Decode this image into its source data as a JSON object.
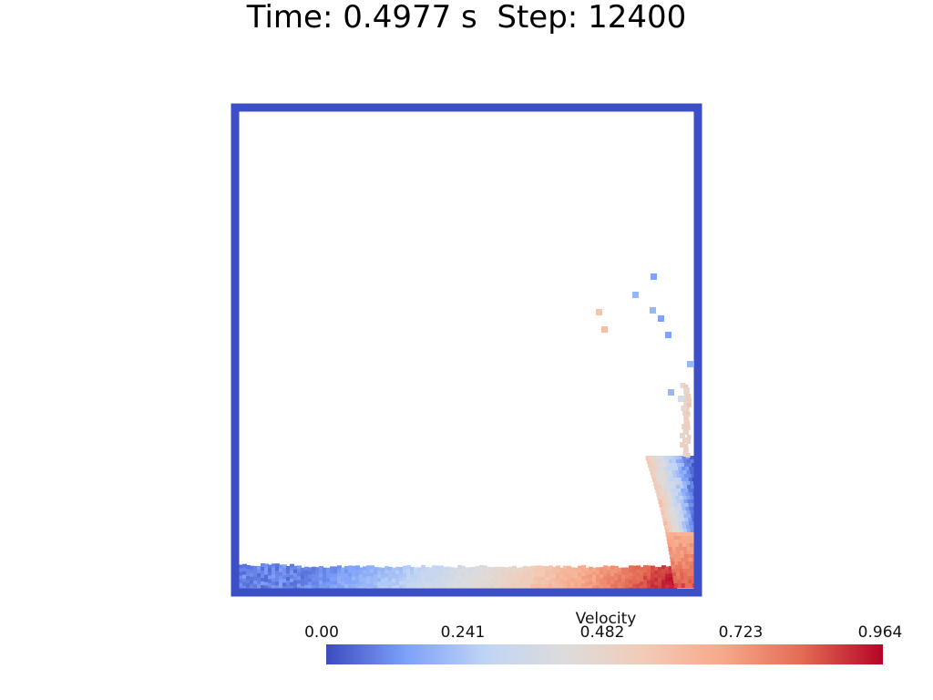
{
  "header": {
    "time_label": "Time:",
    "time_value": "0.4977",
    "time_unit": "s",
    "step_label": "Step:",
    "step_value": "12400"
  },
  "colorbar": {
    "title": "Velocity",
    "ticks": [
      "0.00",
      "0.241",
      "0.482",
      "0.723",
      "0.964"
    ],
    "min": 0.0,
    "max": 0.964,
    "colormap": [
      "#3b4cc0",
      "#7da0f9",
      "#c0d4f5",
      "#dddcdc",
      "#f2cbb7",
      "#f7a889",
      "#e36a53",
      "#b40426"
    ]
  },
  "domain_box": {
    "color": "#3d4fc6"
  }
}
